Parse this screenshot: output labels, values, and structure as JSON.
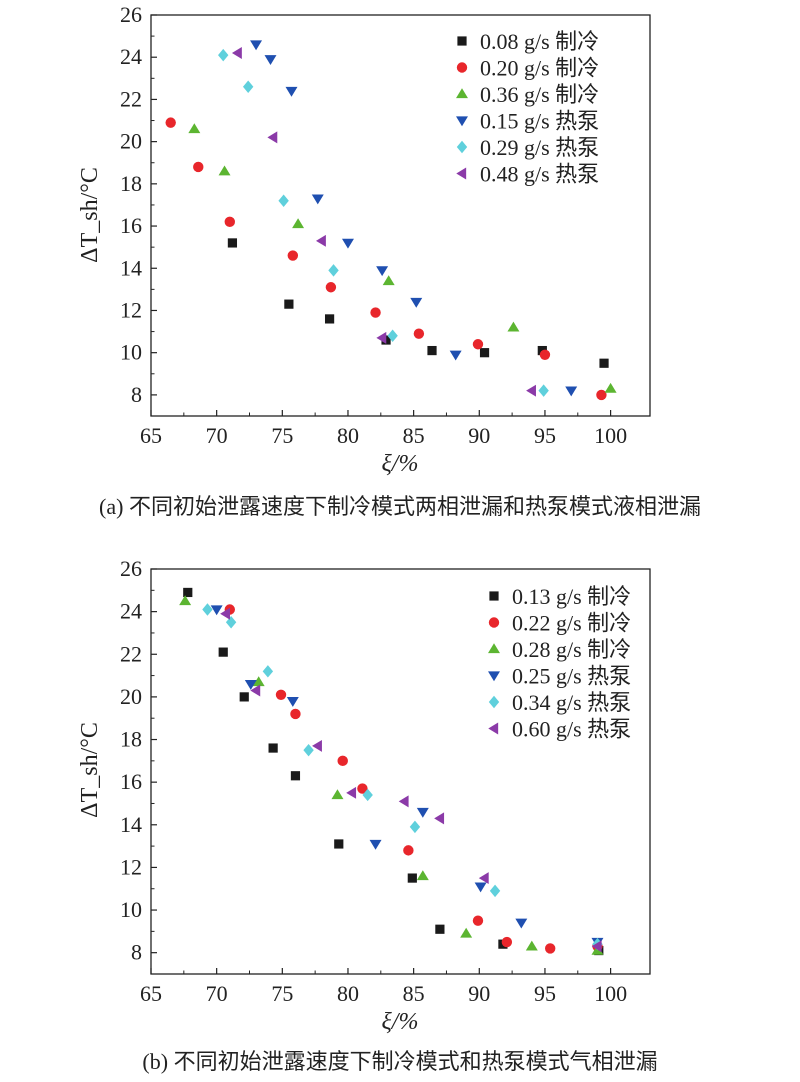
{
  "chart_data": [
    {
      "type": "scatter",
      "caption": "(a) 不同初始泄露速度下制冷模式两相泄漏和热泵模式液相泄漏",
      "xlabel": "ξ/%",
      "ylabel": "ΔT_sh/°C",
      "xlim": [
        65,
        103
      ],
      "ylim": [
        7,
        26
      ],
      "xticks": [
        65,
        70,
        75,
        80,
        85,
        90,
        95,
        100
      ],
      "yticks": [
        8,
        10,
        12,
        14,
        16,
        18,
        20,
        22,
        24,
        26
      ],
      "legend_position": "top-right",
      "series": [
        {
          "name": "0.08 g/s 制冷",
          "marker": "square",
          "color": "#1a1a1a",
          "points": [
            [
              71.2,
              15.2
            ],
            [
              75.5,
              12.3
            ],
            [
              78.6,
              11.6
            ],
            [
              82.9,
              10.6
            ],
            [
              86.4,
              10.1
            ],
            [
              90.4,
              10.0
            ],
            [
              94.8,
              10.1
            ],
            [
              99.5,
              9.5
            ]
          ]
        },
        {
          "name": "0.20 g/s 制冷",
          "marker": "circle",
          "color": "#e8262b",
          "points": [
            [
              66.5,
              20.9
            ],
            [
              68.6,
              18.8
            ],
            [
              71.0,
              16.2
            ],
            [
              75.8,
              14.6
            ],
            [
              78.7,
              13.1
            ],
            [
              82.1,
              11.9
            ],
            [
              85.4,
              10.9
            ],
            [
              89.9,
              10.4
            ],
            [
              95.0,
              9.9
            ],
            [
              99.3,
              8.0
            ]
          ]
        },
        {
          "name": "0.36 g/s 制冷",
          "marker": "triangle-up",
          "color": "#5cb531",
          "points": [
            [
              68.3,
              20.6
            ],
            [
              70.6,
              18.6
            ],
            [
              76.2,
              16.1
            ],
            [
              83.1,
              13.4
            ],
            [
              92.6,
              11.2
            ],
            [
              100.0,
              8.3
            ]
          ]
        },
        {
          "name": "0.15 g/s 热泵",
          "marker": "triangle-down",
          "color": "#1f4fb0",
          "points": [
            [
              73.0,
              24.6
            ],
            [
              74.1,
              23.9
            ],
            [
              75.7,
              22.4
            ],
            [
              77.7,
              17.3
            ],
            [
              80.0,
              15.2
            ],
            [
              82.6,
              13.9
            ],
            [
              85.2,
              12.4
            ],
            [
              88.2,
              9.9
            ],
            [
              97.0,
              8.2
            ]
          ]
        },
        {
          "name": "0.29 g/s 热泵",
          "marker": "diamond",
          "color": "#5fd0dc",
          "points": [
            [
              70.5,
              24.1
            ],
            [
              72.4,
              22.6
            ],
            [
              75.1,
              17.2
            ],
            [
              78.9,
              13.9
            ],
            [
              83.4,
              10.8
            ],
            [
              94.9,
              8.2
            ]
          ]
        },
        {
          "name": "0.48 g/s 热泵",
          "marker": "triangle-left",
          "color": "#8b3aa8",
          "points": [
            [
              71.6,
              24.2
            ],
            [
              74.3,
              20.2
            ],
            [
              78.0,
              15.3
            ],
            [
              82.6,
              10.7
            ],
            [
              94.0,
              8.2
            ]
          ]
        }
      ]
    },
    {
      "type": "scatter",
      "caption": "(b) 不同初始泄露速度下制冷模式和热泵模式气相泄漏",
      "xlabel": "ξ/%",
      "ylabel": "ΔT_sh/°C",
      "xlim": [
        65,
        103
      ],
      "ylim": [
        7,
        26
      ],
      "xticks": [
        65,
        70,
        75,
        80,
        85,
        90,
        95,
        100
      ],
      "yticks": [
        8,
        10,
        12,
        14,
        16,
        18,
        20,
        22,
        24,
        26
      ],
      "legend_position": "top-right",
      "series": [
        {
          "name": "0.13 g/s 制冷",
          "marker": "square",
          "color": "#1a1a1a",
          "points": [
            [
              67.8,
              24.9
            ],
            [
              70.5,
              22.1
            ],
            [
              72.1,
              20.0
            ],
            [
              74.3,
              17.6
            ],
            [
              76.0,
              16.3
            ],
            [
              79.3,
              13.1
            ],
            [
              84.9,
              11.5
            ],
            [
              87.0,
              9.1
            ],
            [
              91.8,
              8.4
            ],
            [
              99.1,
              8.1
            ]
          ]
        },
        {
          "name": "0.22 g/s 制冷",
          "marker": "circle",
          "color": "#e8262b",
          "points": [
            [
              71.0,
              24.1
            ],
            [
              74.9,
              20.1
            ],
            [
              76.0,
              19.2
            ],
            [
              79.6,
              17.0
            ],
            [
              81.1,
              15.7
            ],
            [
              84.6,
              12.8
            ],
            [
              89.9,
              9.5
            ],
            [
              92.1,
              8.5
            ],
            [
              95.4,
              8.2
            ],
            [
              99.0,
              8.3
            ]
          ]
        },
        {
          "name": "0.28 g/s 制冷",
          "marker": "triangle-up",
          "color": "#5cb531",
          "points": [
            [
              67.6,
              24.5
            ],
            [
              73.2,
              20.7
            ],
            [
              79.2,
              15.4
            ],
            [
              85.7,
              11.6
            ],
            [
              89.0,
              8.9
            ],
            [
              94.0,
              8.3
            ],
            [
              99.0,
              8.1
            ]
          ]
        },
        {
          "name": "0.25 g/s 热泵",
          "marker": "triangle-down",
          "color": "#1f4fb0",
          "points": [
            [
              70.0,
              24.1
            ],
            [
              72.6,
              20.6
            ],
            [
              75.8,
              19.8
            ],
            [
              82.1,
              13.1
            ],
            [
              85.7,
              14.6
            ],
            [
              90.1,
              11.1
            ],
            [
              93.2,
              9.4
            ],
            [
              99.0,
              8.5
            ]
          ]
        },
        {
          "name": "0.34 g/s 热泵",
          "marker": "diamond",
          "color": "#5fd0dc",
          "points": [
            [
              69.3,
              24.1
            ],
            [
              71.1,
              23.5
            ],
            [
              73.9,
              21.2
            ],
            [
              77.0,
              17.5
            ],
            [
              81.5,
              15.4
            ],
            [
              85.1,
              13.9
            ],
            [
              91.2,
              10.9
            ],
            [
              99.0,
              8.4
            ]
          ]
        },
        {
          "name": "0.60 g/s 热泵",
          "marker": "triangle-left",
          "color": "#8b3aa8",
          "points": [
            [
              70.7,
              23.9
            ],
            [
              73.0,
              20.3
            ],
            [
              77.7,
              17.7
            ],
            [
              80.3,
              15.5
            ],
            [
              84.3,
              15.1
            ],
            [
              87.0,
              14.3
            ],
            [
              90.4,
              11.5
            ],
            [
              99.0,
              8.3
            ]
          ]
        }
      ]
    }
  ]
}
